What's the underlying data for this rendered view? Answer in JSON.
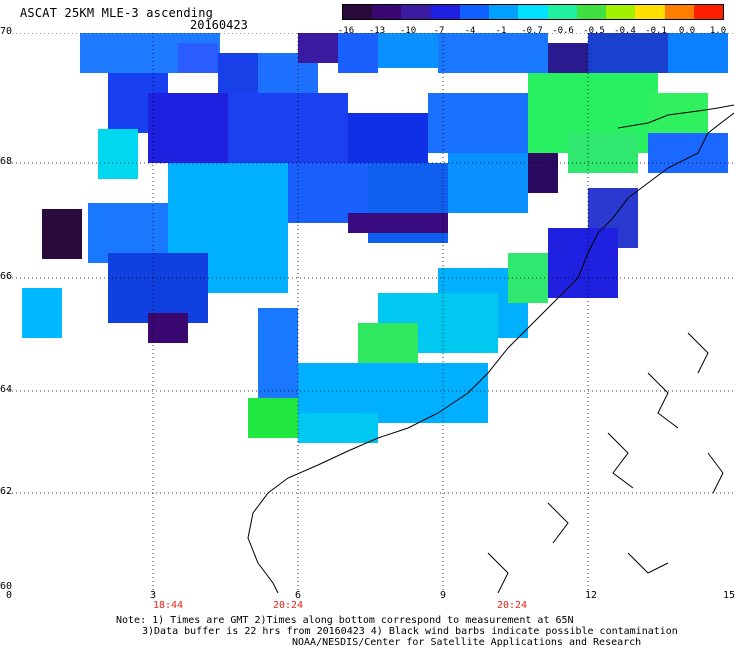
{
  "header": {
    "title": "ASCAT 25KM MLE-3 ascending",
    "date": "20160423"
  },
  "colorbar": {
    "labels": [
      "-16",
      "-13",
      "-10",
      "-7",
      "-4",
      "-1",
      "-0.7",
      "-0.6",
      "-0.5",
      "-0.4",
      "-0.1",
      "0.0",
      "1.0"
    ],
    "colors": [
      "#2a0a3a",
      "#3a0670",
      "#3a1aa0",
      "#2020e0",
      "#1060ff",
      "#00a0ff",
      "#00e0ff",
      "#20f0a0",
      "#40e040",
      "#a0f000",
      "#ffe000",
      "#ff8000",
      "#ff2000"
    ]
  },
  "axes": {
    "lat_labels": [
      "70",
      "68",
      "66",
      "64",
      "62",
      "60"
    ],
    "lon_labels": [
      "0",
      "3",
      "6",
      "9",
      "12",
      "15"
    ],
    "time_labels": [
      "18:44",
      "20:24",
      "20:24"
    ],
    "grid": "dotted"
  },
  "footer": {
    "line1": "Note: 1) Times are GMT 2)Times along bottom correspond to measurement at 65N",
    "line2": "3)Data buffer is 22 hrs from 20160423 4) Black wind barbs indicate possible contamination",
    "line3": "NOAA/NESDIS/Center for Satellite Applications and Research"
  },
  "icons": [
    "coastline-outline"
  ]
}
